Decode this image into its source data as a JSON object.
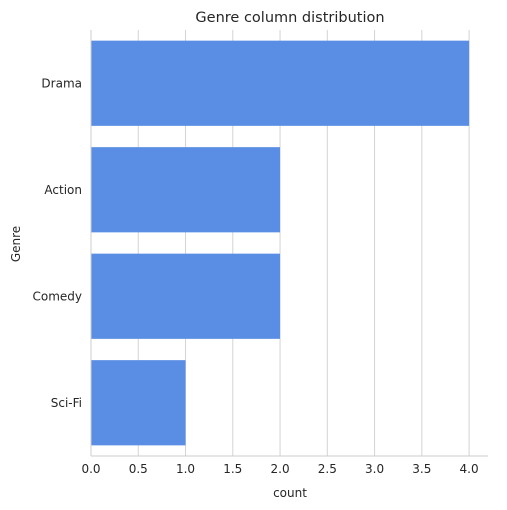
{
  "chart_data": {
    "type": "bar",
    "orientation": "horizontal",
    "title": "Genre column distribution",
    "xlabel": "count",
    "ylabel": "Genre",
    "categories": [
      "Drama",
      "Action",
      "Comedy",
      "Sci-Fi"
    ],
    "values": [
      4,
      2,
      2,
      1
    ],
    "xlim": [
      0,
      4.2
    ],
    "xticks": [
      "0.0",
      "0.5",
      "1.0",
      "1.5",
      "2.0",
      "2.5",
      "3.0",
      "3.5",
      "4.0"
    ],
    "grid": "vertical",
    "bar_color": "#5a8ee4",
    "grid_color": "#d3d3d3"
  }
}
